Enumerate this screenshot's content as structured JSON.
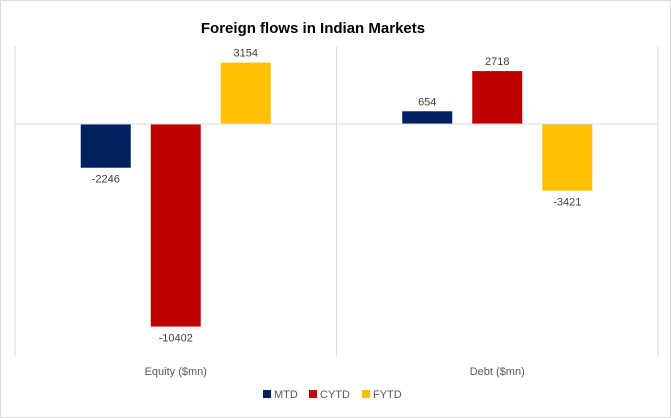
{
  "chart_data": {
    "type": "bar",
    "title": "Foreign flows in Indian Markets",
    "categories": [
      "Equity ($mn)",
      "Debt ($mn)"
    ],
    "series": [
      {
        "name": "MTD",
        "color": "#002060",
        "values": [
          -2246,
          654
        ]
      },
      {
        "name": "CYTD",
        "color": "#C00000",
        "values": [
          -10402,
          2718
        ]
      },
      {
        "name": "FYTD",
        "color": "#FFC000",
        "values": [
          3154,
          -3421
        ]
      }
    ],
    "data_labels": true,
    "gridlines": "vertical category separators",
    "legend_position": "bottom"
  }
}
